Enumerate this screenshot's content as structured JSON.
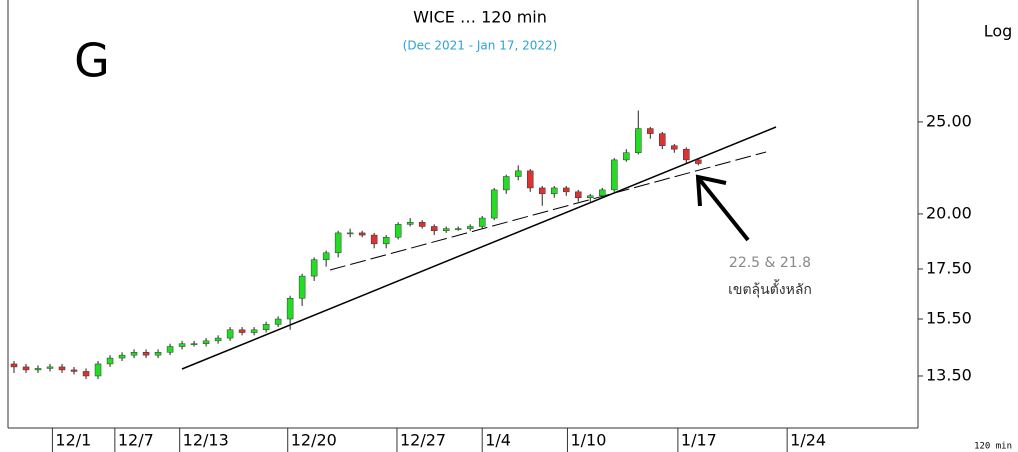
{
  "chart_data": {
    "type": "candlestick",
    "title": "WICE … 120 min",
    "subtitle": "(Dec 2021 - Jan 17, 2022)",
    "panel_label": "G",
    "scale_label": "Log",
    "interval_label": "120 min",
    "annotations": [
      "22.5 & 21.8",
      "เขตลุ้นตั้งหลัก"
    ],
    "log_scale": true,
    "up_color": "#22dd22",
    "down_color": "#e03030",
    "x": [
      0,
      1,
      2,
      3,
      4,
      5,
      6,
      7,
      8,
      9,
      10,
      11,
      12,
      13,
      14,
      15,
      16,
      17,
      18,
      19,
      20,
      21,
      22,
      23,
      24,
      25,
      26,
      27,
      28,
      29,
      30,
      31,
      32,
      33,
      34,
      35,
      36,
      37,
      38,
      39,
      40,
      41,
      42,
      43,
      44,
      45,
      46,
      47,
      48,
      49,
      50,
      51,
      52,
      53,
      54,
      55,
      56,
      57
    ],
    "open": [
      13.9,
      13.8,
      13.7,
      13.75,
      13.8,
      13.7,
      13.65,
      13.5,
      13.9,
      14.1,
      14.2,
      14.3,
      14.2,
      14.3,
      14.5,
      14.6,
      14.6,
      14.7,
      14.8,
      15.1,
      15.0,
      15.1,
      15.3,
      15.5,
      16.3,
      17.2,
      17.9,
      18.2,
      19.1,
      19.1,
      19.0,
      18.6,
      18.9,
      19.5,
      19.6,
      19.4,
      19.2,
      19.3,
      19.3,
      19.4,
      19.8,
      21.2,
      21.9,
      22.2,
      21.3,
      21.0,
      21.3,
      21.1,
      20.8,
      20.9,
      21.2,
      22.8,
      23.2,
      24.6,
      24.3,
      23.6,
      23.4,
      22.8
    ],
    "high": [
      14.0,
      13.9,
      13.85,
      13.9,
      13.9,
      13.8,
      13.75,
      14.0,
      14.2,
      14.3,
      14.4,
      14.4,
      14.4,
      14.6,
      14.7,
      14.7,
      14.8,
      14.9,
      15.2,
      15.2,
      15.2,
      15.4,
      15.6,
      16.4,
      17.3,
      18.0,
      18.3,
      19.2,
      19.3,
      19.2,
      19.1,
      19.0,
      19.6,
      19.8,
      19.7,
      19.5,
      19.4,
      19.4,
      19.5,
      19.9,
      21.3,
      22.0,
      22.5,
      22.3,
      21.4,
      21.4,
      21.4,
      21.2,
      21.0,
      21.3,
      22.9,
      23.4,
      25.7,
      24.7,
      24.4,
      23.7,
      23.5,
      22.9
    ],
    "low": [
      13.6,
      13.6,
      13.6,
      13.65,
      13.6,
      13.55,
      13.4,
      13.4,
      13.8,
      14.0,
      14.1,
      14.1,
      14.1,
      14.2,
      14.4,
      14.5,
      14.5,
      14.6,
      14.7,
      14.9,
      14.9,
      15.0,
      15.2,
      15.1,
      16.0,
      17.0,
      17.6,
      18.0,
      18.9,
      18.9,
      18.4,
      18.4,
      18.8,
      19.4,
      19.3,
      19.0,
      19.1,
      19.2,
      19.2,
      19.3,
      19.7,
      21.0,
      21.7,
      21.1,
      20.4,
      20.8,
      20.9,
      20.6,
      20.6,
      20.8,
      21.1,
      22.7,
      23.1,
      24.0,
      23.4,
      23.2,
      22.6,
      22.5
    ],
    "close": [
      13.8,
      13.7,
      13.75,
      13.8,
      13.7,
      13.65,
      13.5,
      13.9,
      14.1,
      14.2,
      14.3,
      14.2,
      14.3,
      14.5,
      14.6,
      14.6,
      14.7,
      14.8,
      15.1,
      15.0,
      15.1,
      15.3,
      15.5,
      16.3,
      17.2,
      17.9,
      18.2,
      19.1,
      19.1,
      19.0,
      18.6,
      18.9,
      19.5,
      19.6,
      19.4,
      19.2,
      19.3,
      19.3,
      19.4,
      19.8,
      21.2,
      21.9,
      22.2,
      21.3,
      21.0,
      21.3,
      21.1,
      20.8,
      20.9,
      21.2,
      22.8,
      23.2,
      24.6,
      24.3,
      23.6,
      23.4,
      22.8,
      22.6
    ],
    "xlim": [
      -0.5,
      75.3
    ],
    "xticks": [
      {
        "value": 3.2,
        "label": "12/1"
      },
      {
        "value": 8.4,
        "label": "12/7"
      },
      {
        "value": 13.8,
        "label": "12/13"
      },
      {
        "value": 22.8,
        "label": "12/20"
      },
      {
        "value": 31.9,
        "label": "12/27"
      },
      {
        "value": 39,
        "label": "1/4"
      },
      {
        "value": 46.1,
        "label": "1/10"
      },
      {
        "value": 55.3,
        "label": "1/17"
      },
      {
        "value": 64.4,
        "label": "1/24"
      }
    ],
    "ylim": [
      11.9,
      33.6
    ],
    "yticks": [
      {
        "value": 13.5,
        "label": "13.50"
      },
      {
        "value": 15.5,
        "label": "15.50"
      },
      {
        "value": 17.5,
        "label": "17.50"
      },
      {
        "value": 20,
        "label": "20.00"
      },
      {
        "value": 25,
        "label": "25.00"
      }
    ]
  }
}
